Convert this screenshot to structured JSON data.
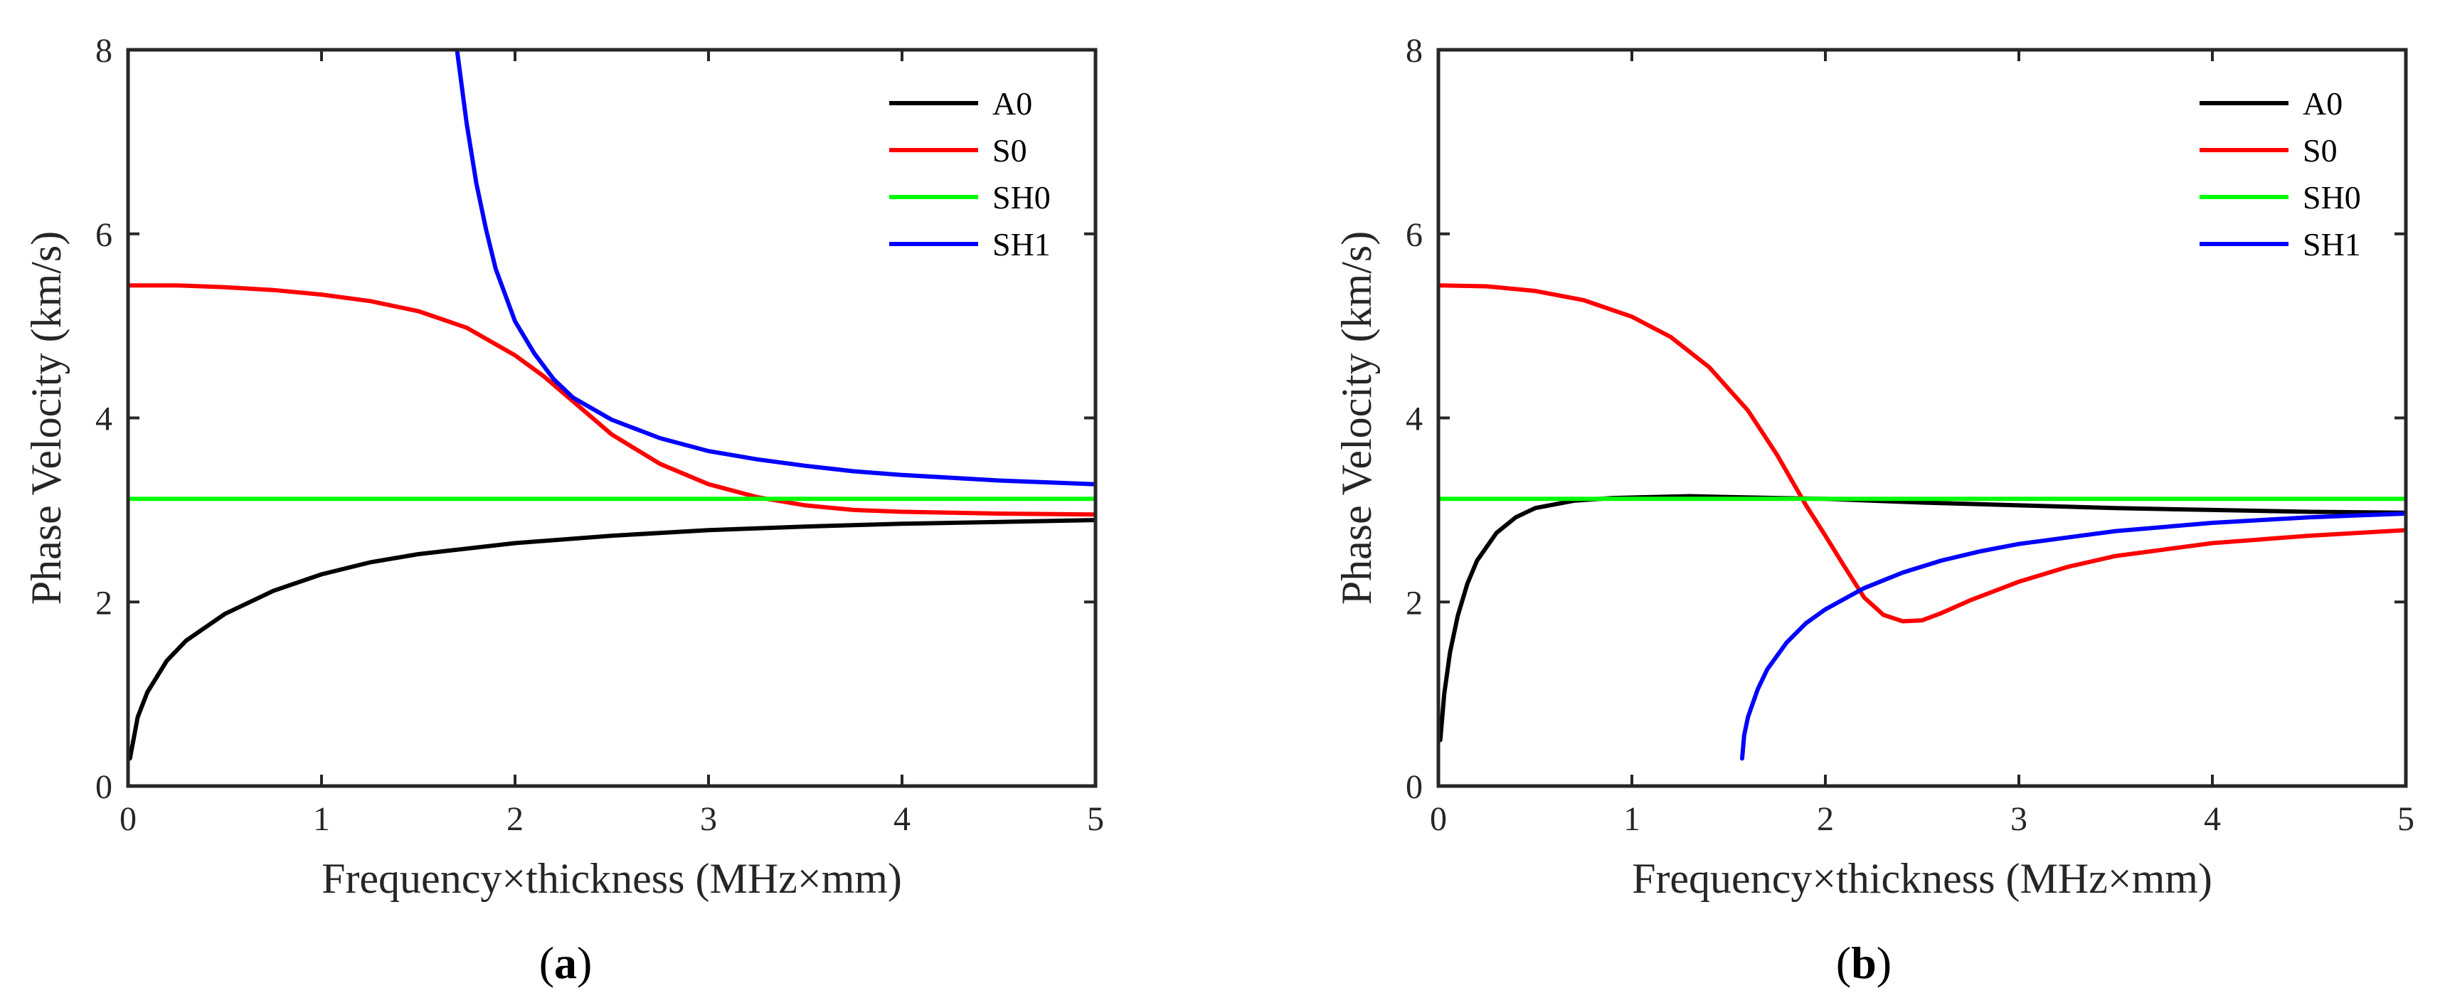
{
  "chart_data": [
    {
      "type": "line",
      "panel_label": "a",
      "xlabel": "Frequency×thickness (MHz×mm)",
      "ylabel": "Phase Velocity (km/s)",
      "xlim": [
        0,
        5
      ],
      "ylim": [
        0,
        8
      ],
      "xticks": [
        "0",
        "1",
        "2",
        "3",
        "4",
        "5"
      ],
      "yticks": [
        "0",
        "2",
        "4",
        "6",
        "8"
      ],
      "grid": false,
      "legend_position": "top-right",
      "series": [
        {
          "name": "A0",
          "color": "#000000",
          "x": [
            0.01,
            0.05,
            0.1,
            0.2,
            0.3,
            0.5,
            0.75,
            1.0,
            1.25,
            1.5,
            2.0,
            2.5,
            3.0,
            3.5,
            4.0,
            4.5,
            5.0
          ],
          "y": [
            0.3,
            0.75,
            1.02,
            1.36,
            1.58,
            1.87,
            2.12,
            2.3,
            2.43,
            2.52,
            2.64,
            2.72,
            2.78,
            2.82,
            2.85,
            2.87,
            2.89
          ]
        },
        {
          "name": "S0",
          "color": "#ff0000",
          "x": [
            0.0,
            0.25,
            0.5,
            0.75,
            1.0,
            1.25,
            1.5,
            1.75,
            2.0,
            2.15,
            2.3,
            2.5,
            2.75,
            3.0,
            3.25,
            3.5,
            3.75,
            4.0,
            4.5,
            5.0
          ],
          "y": [
            5.44,
            5.44,
            5.42,
            5.39,
            5.34,
            5.27,
            5.16,
            4.98,
            4.68,
            4.45,
            4.18,
            3.82,
            3.5,
            3.28,
            3.14,
            3.05,
            3.0,
            2.98,
            2.96,
            2.95
          ]
        },
        {
          "name": "SH0",
          "color": "#00ff00",
          "x": [
            0.0,
            5.0
          ],
          "y": [
            3.12,
            3.12
          ]
        },
        {
          "name": "SH1",
          "color": "#0000ff",
          "x": [
            1.7,
            1.75,
            1.8,
            1.85,
            1.9,
            2.0,
            2.1,
            2.2,
            2.3,
            2.5,
            2.75,
            3.0,
            3.25,
            3.5,
            3.75,
            4.0,
            4.5,
            5.0
          ],
          "y": [
            8.0,
            7.2,
            6.55,
            6.05,
            5.62,
            5.05,
            4.7,
            4.42,
            4.22,
            3.98,
            3.78,
            3.64,
            3.55,
            3.48,
            3.42,
            3.38,
            3.32,
            3.28
          ]
        }
      ]
    },
    {
      "type": "line",
      "panel_label": "b",
      "xlabel": "Frequency×thickness (MHz×mm)",
      "ylabel": "Phase Velocity (km/s)",
      "xlim": [
        0,
        5
      ],
      "ylim": [
        0,
        8
      ],
      "xticks": [
        "0",
        "1",
        "2",
        "3",
        "4",
        "5"
      ],
      "yticks": [
        "0",
        "2",
        "4",
        "6",
        "8"
      ],
      "grid": false,
      "legend_position": "top-right",
      "series": [
        {
          "name": "A0",
          "color": "#000000",
          "x": [
            0.01,
            0.03,
            0.06,
            0.1,
            0.15,
            0.2,
            0.3,
            0.4,
            0.5,
            0.7,
            0.9,
            1.1,
            1.3,
            1.5,
            1.75,
            2.0,
            2.5,
            3.0,
            3.5,
            4.0,
            4.5,
            5.0
          ],
          "y": [
            0.5,
            1.0,
            1.45,
            1.85,
            2.2,
            2.45,
            2.75,
            2.92,
            3.02,
            3.1,
            3.13,
            3.14,
            3.15,
            3.14,
            3.13,
            3.12,
            3.08,
            3.05,
            3.02,
            3.0,
            2.98,
            2.97
          ]
        },
        {
          "name": "S0",
          "color": "#ff0000",
          "x": [
            0.0,
            0.25,
            0.5,
            0.75,
            1.0,
            1.2,
            1.4,
            1.6,
            1.75,
            1.9,
            2.0,
            2.1,
            2.2,
            2.3,
            2.4,
            2.5,
            2.6,
            2.75,
            3.0,
            3.25,
            3.5,
            4.0,
            4.5,
            5.0
          ],
          "y": [
            5.44,
            5.43,
            5.38,
            5.28,
            5.1,
            4.88,
            4.55,
            4.08,
            3.6,
            3.05,
            2.72,
            2.38,
            2.05,
            1.86,
            1.79,
            1.8,
            1.88,
            2.02,
            2.22,
            2.38,
            2.5,
            2.64,
            2.72,
            2.78
          ]
        },
        {
          "name": "SH0",
          "color": "#00ff00",
          "x": [
            0.0,
            5.0
          ],
          "y": [
            3.12,
            3.12
          ]
        },
        {
          "name": "SH1",
          "color": "#0000ff",
          "x": [
            1.57,
            1.58,
            1.6,
            1.65,
            1.7,
            1.8,
            1.9,
            2.0,
            2.2,
            2.4,
            2.6,
            2.8,
            3.0,
            3.5,
            4.0,
            4.5,
            5.0
          ],
          "y": [
            0.3,
            0.55,
            0.75,
            1.05,
            1.27,
            1.56,
            1.77,
            1.92,
            2.15,
            2.32,
            2.45,
            2.55,
            2.63,
            2.77,
            2.86,
            2.92,
            2.96
          ]
        }
      ]
    }
  ]
}
